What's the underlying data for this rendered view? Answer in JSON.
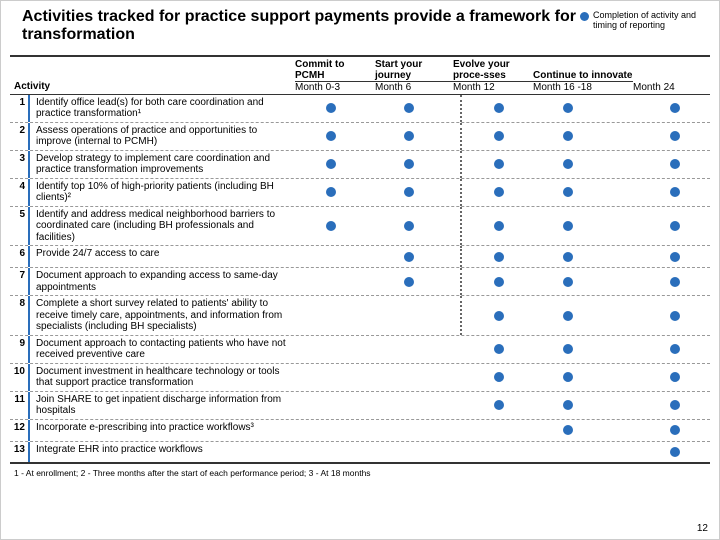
{
  "title": "Activities tracked for practice support payments provide a framework for transformation",
  "legend": "Completion of activity and timing of reporting",
  "colors": {
    "dot": "#2a6ebb",
    "rule": "#333333",
    "dash": "#999999"
  },
  "phases": [
    {
      "name": "Commit to PCMH",
      "month": "Month 0-3"
    },
    {
      "name": "Start your journey",
      "month": "Month 6"
    },
    {
      "name": "Evolve your proce-sses",
      "month": "Month 12"
    },
    {
      "name": "Continue to innovate",
      "month": "Month 16 -18"
    },
    {
      "name": "",
      "month": "Month 24"
    }
  ],
  "activityLabel": "Activity",
  "dotPositions": [
    36,
    114,
    204,
    273,
    380
  ],
  "dividerStart": 165,
  "dividerEndRow": 7,
  "rows": [
    {
      "n": "1",
      "text": "Identify office lead(s) for both care coordination and practice transformation¹",
      "dots": [
        0,
        1,
        2,
        3,
        4
      ]
    },
    {
      "n": "2",
      "text": "Assess operations of practice and opportunities to improve (internal to PCMH)",
      "dots": [
        0,
        1,
        2,
        3,
        4
      ]
    },
    {
      "n": "3",
      "text": "Develop strategy to implement care coordination and practice transformation improvements",
      "dots": [
        0,
        1,
        2,
        3,
        4
      ]
    },
    {
      "n": "4",
      "text": "Identify top 10% of high-priority patients (including BH clients)²",
      "dots": [
        0,
        1,
        2,
        3,
        4
      ]
    },
    {
      "n": "5",
      "text": "Identify and address medical neighborhood barriers to coordinated care (including BH professionals and facilities)",
      "dots": [
        0,
        1,
        2,
        3,
        4
      ]
    },
    {
      "n": "6",
      "text": "Provide 24/7 access to care",
      "dots": [
        1,
        2,
        3,
        4
      ]
    },
    {
      "n": "7",
      "text": "Document approach to expanding access to same-day appointments",
      "dots": [
        1,
        2,
        3,
        4
      ]
    },
    {
      "n": "8",
      "text": "Complete a short survey related to patients' ability to receive timely care, appointments, and information from specialists (including BH specialists)",
      "dots": [
        2,
        3,
        4
      ]
    },
    {
      "n": "9",
      "text": "Document approach to contacting patients who have not received preventive care",
      "dots": [
        2,
        3,
        4
      ]
    },
    {
      "n": "10",
      "text": "Document investment in healthcare technology or tools that support practice transformation",
      "dots": [
        2,
        3,
        4
      ]
    },
    {
      "n": "11",
      "text": "Join SHARE to get inpatient discharge information from hospitals",
      "dots": [
        2,
        3,
        4
      ]
    },
    {
      "n": "12",
      "text": "Incorporate e-prescribing into practice workflows³",
      "dots": [
        3,
        4
      ]
    },
    {
      "n": "13",
      "text": "Integrate EHR into practice workflows",
      "dots": [
        4
      ]
    }
  ],
  "footnotes": "1 - At enrollment; 2 - Three months after the start of each performance period; 3 - At 18 months",
  "slideNumber": "12"
}
